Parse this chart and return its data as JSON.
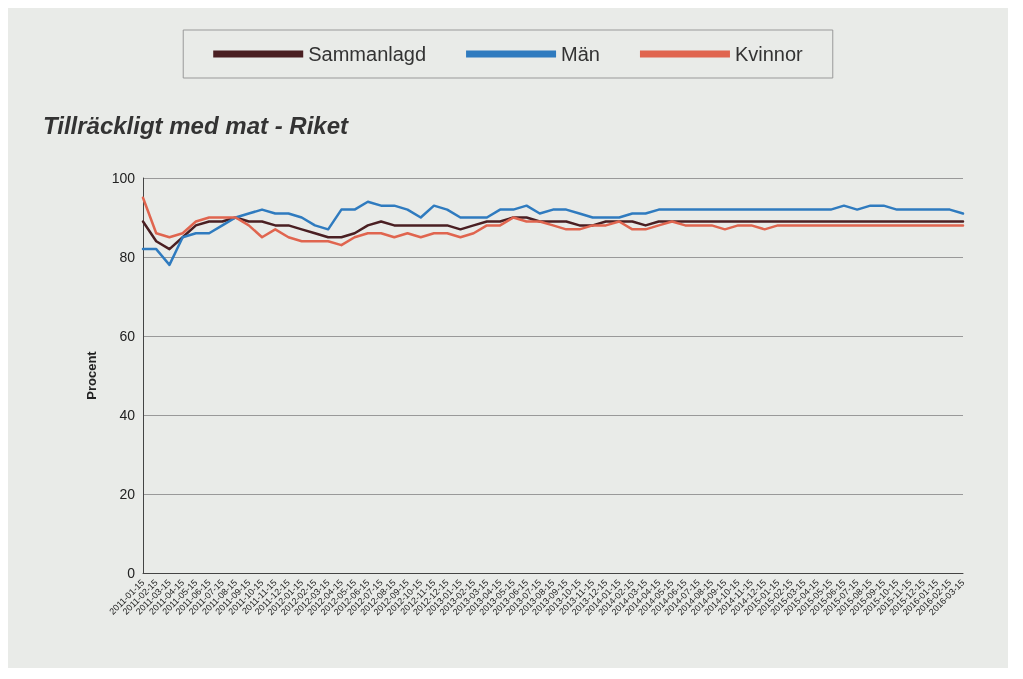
{
  "chart_data": {
    "type": "line",
    "title": "Tillräckligt med mat - Riket",
    "ylabel": "Procent",
    "categories": [
      "2011-01-15",
      "2011-02-15",
      "2011-03-15",
      "2011-04-15",
      "2011-05-15",
      "2011-06-15",
      "2011-07-15",
      "2011-08-15",
      "2011-09-15",
      "2011-10-15",
      "2011-11-15",
      "2011-12-15",
      "2012-01-15",
      "2012-02-15",
      "2012-03-15",
      "2012-04-15",
      "2012-05-15",
      "2012-06-15",
      "2012-07-15",
      "2012-08-15",
      "2012-09-15",
      "2012-10-15",
      "2012-11-15",
      "2012-12-15",
      "2013-01-15",
      "2013-02-15",
      "2013-03-15",
      "2013-04-15",
      "2013-05-15",
      "2013-06-15",
      "2013-07-15",
      "2013-08-15",
      "2013-09-15",
      "2013-10-15",
      "2013-11-15",
      "2013-12-15",
      "2014-01-15",
      "2014-02-15",
      "2014-03-15",
      "2014-04-15",
      "2014-05-15",
      "2014-06-15",
      "2014-07-15",
      "2014-08-15",
      "2014-09-15",
      "2014-10-15",
      "2014-11-15",
      "2014-12-15",
      "2015-01-15",
      "2015-02-15",
      "2015-03-15",
      "2015-04-15",
      "2015-05-15",
      "2015-06-15",
      "2015-07-15",
      "2015-08-15",
      "2015-09-15",
      "2015-10-15",
      "2015-11-15",
      "2015-12-15",
      "2016-01-15",
      "2016-02-15",
      "2016-03-15"
    ],
    "series": [
      {
        "name": "Sammanlagd",
        "color": "#4a1f22",
        "values": [
          89,
          84,
          82,
          85,
          88,
          89,
          89,
          90,
          89,
          89,
          88,
          88,
          87,
          86,
          85,
          85,
          86,
          88,
          89,
          88,
          88,
          88,
          88,
          88,
          87,
          88,
          89,
          89,
          90,
          90,
          89,
          89,
          89,
          88,
          88,
          89,
          89,
          89,
          88,
          89,
          89,
          89,
          89,
          89,
          89,
          89,
          89,
          89,
          89,
          89,
          89,
          89,
          89,
          89,
          89,
          89,
          89,
          89,
          89,
          89,
          89,
          89,
          89
        ]
      },
      {
        "name": "Män",
        "color": "#2f7bbf",
        "values": [
          82,
          82,
          78,
          85,
          86,
          86,
          88,
          90,
          91,
          92,
          91,
          91,
          90,
          88,
          87,
          92,
          92,
          94,
          93,
          93,
          92,
          90,
          93,
          92,
          90,
          90,
          90,
          92,
          92,
          93,
          91,
          92,
          92,
          91,
          90,
          90,
          90,
          91,
          91,
          92,
          92,
          92,
          92,
          92,
          92,
          92,
          92,
          92,
          92,
          92,
          92,
          92,
          92,
          93,
          92,
          93,
          93,
          92,
          92,
          92,
          92,
          92,
          91
        ]
      },
      {
        "name": "Kvinnor",
        "color": "#e0654f",
        "values": [
          95,
          86,
          85,
          86,
          89,
          90,
          90,
          90,
          88,
          85,
          87,
          85,
          84,
          84,
          84,
          83,
          85,
          86,
          86,
          85,
          86,
          85,
          86,
          86,
          85,
          86,
          88,
          88,
          90,
          89,
          89,
          88,
          87,
          87,
          88,
          88,
          89,
          87,
          87,
          88,
          89,
          88,
          88,
          88,
          87,
          88,
          88,
          87,
          88,
          88,
          88,
          88,
          88,
          88,
          88,
          88,
          88,
          88,
          88,
          88,
          88,
          88,
          88
        ]
      }
    ],
    "ylim": [
      0,
      100
    ],
    "yticks": [
      0,
      20,
      40,
      60,
      80,
      100
    ],
    "grid": "y",
    "legend": "top",
    "marker": "none"
  }
}
